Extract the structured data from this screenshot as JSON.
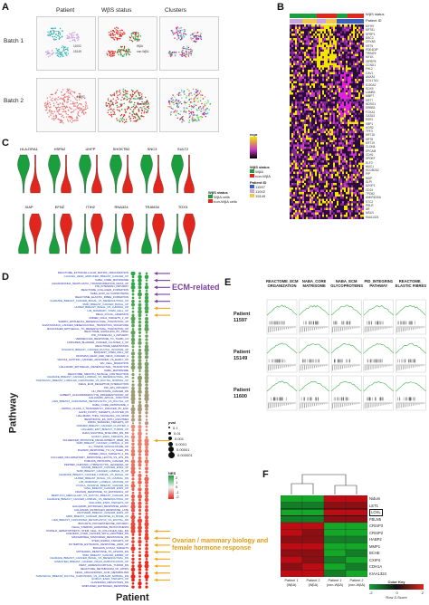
{
  "panel_letters": {
    "a": "A",
    "b": "B",
    "c": "C",
    "d": "D",
    "e": "E",
    "f": "F"
  },
  "panelA": {
    "col_titles": [
      "Patient",
      "WβS status",
      "Clusters"
    ],
    "row_titles": [
      "Batch 1",
      "Batch 2"
    ],
    "batch1_legend": [
      "11002",
      "15149"
    ],
    "batch2_patient": "11597",
    "status_legend": [
      "WβA",
      "non-WβA"
    ]
  },
  "panelB": {
    "header_rows": [
      "WβS status",
      "Patient ID"
    ],
    "legend_title_status": "WβS status",
    "legend_status": [
      "WβA",
      "non-WβA"
    ],
    "legend_title_patient": "Patient ID",
    "legend_patient": [
      "11597",
      "11002",
      "15149"
    ],
    "legend_scale": "expr",
    "genes": [
      "MYH9",
      "KRT81",
      "SFRP1",
      "DSC3",
      "CRYAB",
      "KRT5",
      "PDE4DIP",
      "TRIM29",
      "MYLK",
      "IGFBP5",
      "CCND1",
      "FHL2",
      "CAV1",
      "ANXA1",
      "COL17A1",
      "S100A2",
      "SOX9",
      "LAMB3",
      "MMP7",
      "KRT7",
      "NDRG1",
      "ERBB3",
      "FOXA1",
      "GATA3",
      "ESR1",
      "XBP1",
      "AGR2",
      "TFF3",
      "KRT18",
      "KRT8",
      "KRT19",
      "CLDN4",
      "EPCAM",
      "CDH1",
      "SPDEF",
      "ELF3",
      "MUC1",
      "SCGB2A2",
      "PIP",
      "MGP",
      "SLPI",
      "AZGP1",
      "CD24",
      "TPD52",
      "ANKRD30A",
      "STC2",
      "PRLR",
      "AR",
      "MSLN",
      "KIAA1324"
    ]
  },
  "panelC": {
    "row1_genes": [
      "HLA-DRA1",
      "HSPA2",
      "UHFP",
      "SHOKTB2",
      "SNC3",
      "SULT2"
    ],
    "row2_genes": [
      "XIAP",
      "EFNZ",
      "ITIH2",
      "RNA324",
      "TRAM34",
      "TOX3"
    ],
    "legend_title": "WβS status",
    "legend": [
      "WβA cells",
      "non-WβA cells"
    ]
  },
  "panelD": {
    "axis_y": "Pathway",
    "axis_x": "Patient",
    "group_ecm": "ECM-related",
    "group_ovarian": "Ovarian / mammary biology and female hormone response",
    "size_legend_title": "pval",
    "size_legend": [
      "0.1",
      "0.01",
      "0.001",
      "0.0001",
      "0.00001",
      "0.000001"
    ],
    "color_legend_title": "NES",
    "color_legend": [
      "2",
      "1",
      "0",
      "-1",
      "-2"
    ],
    "pathways": [
      "REACTOME_EXTRACELLULAR_MATRIX_ORGANIZATION",
      "CHUANG_HER2_AMPLIFIED_BREAST_CANCER_UP",
      "NABA_CORE_MATRISOME",
      "CHIARADONNA_NEOPLASTIC_TRANSFORMATION_KRAS_UP",
      "PID_INTEGRIN1_PATHWAY",
      "REACTOME_COLLAGEN_FORMATION",
      "NABA_ECM_GLYCOPROTEINS",
      "REACTOME_ELASTIC_FIBRE_FORMATION",
      "CHARAFE_BREAST_CANCER_BASAL_VS_MESENCHYMAL_UP",
      "SMID_BREAST_CANCER_BASAL_UP",
      "HUPER_BREAST_BASAL_VS_LUMINAL_UP",
      "LIM_MAMMARY_STEM_CELL_UP",
      "KEGG_FOCAL_ADHESION",
      "ONDER_CDH1_TARGETS_2_UP",
      "SARRIO_EPITHELIAL_MESENCHYMAL_TRANSITION_UP",
      "ANASTASSIOU_CANCER_MESENCHYMAL_TRANSITION_SIGNATURE",
      "JECHLINGER_EPITHELIAL_TO_MESENCHYMAL_TRANSITION_UP",
      "REACTOME_SIGNALING_BY_PDGF",
      "PID_SYNDECAN_1_PATHWAY",
      "VERRECCHIA_RESPONSE_TO_TGFB1_C2",
      "LINDGREN_BLADDER_CANCER_CLUSTER_3_UP",
      "REACTOME_HEMOSTASIS",
      "SCHUETZ_BREAST_CANCER_DUCTAL_INVASIVE_UP",
      "BOQUEST_STEM_CELL_UP",
      "RICKMAN_HEAD_AND_NECK_CANCER_A",
      "VECCHI_GASTRIC_CANCER_ADVANCED_VS_EARLY_UP",
      "WU_CELL_MIGRATION",
      "HALLMARK_EPITHELIAL_MESENCHYMAL_TRANSITION",
      "NABA_MATRISOME",
      "REACTOME_SMOOTH_MUSCLE_CONTRACTION",
      "CHARAFE_BREAST_CANCER_LUMINAL_VS_MESENCHYMAL_DN",
      "TURASHVILI_BREAST_LOBULAR_CARCINOMA_VS_DUCTAL_NORMAL_UP",
      "KEGG_ECM_RECEPTOR_INTERACTION",
      "PID_AP1_PATHWAY",
      "LIU_PROSTATE_CANCER_DN",
      "GOBERT_OLIGODENDROCYTE_DIFFERENTIATION_UP",
      "HALLMARK_APICAL_JUNCTION",
      "LIEN_BREAST_CARCINOMA_METAPLASTIC_VS_DUCTAL_UP",
      "NABA_CORE_MATRISOME_2",
      "ZWANG_CLASS_3_TRANSIENTLY_INDUCED_BY_EGF",
      "GAVIN_FOXP3_TARGETS_CLUSTER_P6",
      "HALLMARK_TNFA_SIGNALING_VIA_NFKB",
      "BENPORATH_ES_WITH_H3K27ME3",
      "WANG_SMARCE1_TARGETS_UP",
      "FARMER_BREAST_CANCER_CLUSTER_4",
      "HOLLERN_EMT_BREAST_TUMOR_UP",
      "ZHAN_MULTIPLE_MYELOMA_MS_DN",
      "GOZGIT_ESR1_TARGETS_DN",
      "SCHAEFFER_PROSTATE_DEVELOPMENT_48HR_DN",
      "SMID_BREAST_CANCER_LUMINAL_A_DN",
      "LU_TUMOR_VASCULATURE_UP",
      "DAZARD_RESPONSE_TO_UV_NHEK_DN",
      "ONDER_CDH1_TARGETS_2_DN",
      "FULCHER_INFLAMMATORY_RESPONSE_LECTIN_VS_LPS_DN",
      "TOMLINS_PROSTATE_CANCER_DN",
      "PEPPER_CHRONIC_LYMPHOCYTIC_LEUKEMIA_UP",
      "DOANE_BREAST_CANCER_ESR1_UP",
      "SMID_BREAST_CANCER_LUMINAL_B_UP",
      "CHARAFE_BREAST_CANCER_LUMINAL_VS_BASAL_UP",
      "HUPER_BREAST_BASAL_VS_LUMINAL_DN",
      "LIM_MAMMARY_LUMINAL_MATURE_UP",
      "POOLA_INVASIVE_BREAST_CANCER_DN",
      "YANG_BREAST_CANCER_ESR1_UP",
      "FRASOR_RESPONSE_TO_ESTRADIOL_UP",
      "BERTUCCI_MEDULLARY_VS_DUCTAL_BREAST_CANCER_DN",
      "CHARAFE_BREAST_CANCER_LUMINAL_VS_MESENCHYMAL_UP",
      "WILLIAMS_ESR1_TARGETS_UP",
      "HALLMARK_ESTROGEN_RESPONSE_EARLY",
      "HALLMARK_ESTROGEN_RESPONSE_LATE",
      "VANTVEER_BREAST_CANCER_ESR1_UP",
      "SMID_BREAST_CANCER_RELAPSE_IN_BONE_UP",
      "LIEN_BREAST_CARCINOMA_METAPLASTIC_VS_DUCTAL_DN",
      "BIOCARTA_PROGESTERONE_PATHWAY",
      "KEGG_STEROID_HORMONE_BIOSYNTHESIS",
      "OSWALD_HEMATOPOIETIC_STEM_CELL_IN_COLLAGEN_GEL_DN",
      "ACEVEDO_LIVER_CANCER_WITH_H3K27ME3_DN",
      "MASSARWEH_TAMOXIFEN_RESISTANCE_DN",
      "STEIN_ESRRA_TARGETS_UP",
      "DUTERTRE_ESTRADIOL_RESPONSE_24HR_UP",
      "BOCHKIS_FOXA2_TARGETS",
      "MITSIADES_RESPONSE_TO_APLIDIN_DN",
      "SMID_BREAST_CANCER_ERBB2_UP",
      "CHARAFE_BREAST_CANCER_BASAL_VS_MESENCHYMAL_DN",
      "GINESTIER_BREAST_CANCER_20Q13_AMPLIFICATION_UP",
      "WEST_ADRENOCORTICAL_TUMOR_DN",
      "REACTOME_METABOLISM_OF_LIPIDS",
      "KEGG_ARACHIDONIC_ACID_METABOLISM",
      "TURASHVILI_BREAST_DUCTAL_CARCINOMA_VS_LOBULAR_NORMAL_DN",
      "GOZGIT_ESR1_TARGETS_UP",
      "CHANDRAN_METASTASIS_DN",
      "SIMPLIFIED_ESTROGEN_RESPONSE"
    ]
  },
  "panelE": {
    "columns": [
      "REACTOME_ECM ORGANIZATION",
      "NABA_CORE MATRISOME",
      "NABA_ECM GLYCOPROTEINS",
      "PID_INTEGRIN1 PATHWAY",
      "REACTOME_ ELASTIC FIBRES"
    ],
    "rows": [
      "Patient 11597",
      "Patient 15149",
      "Patient 11600"
    ]
  },
  "panelF": {
    "genes": [
      "Nidum",
      "LET1",
      "LOXL",
      "FBLN5",
      "CRISP3",
      "CRISP2",
      "HABP2",
      "MMP1",
      "BCHE",
      "CXIP4",
      "CDH1A",
      "KIAA1324"
    ],
    "columns": [
      "Patient 1 (WβA)",
      "Patient 2 (WβA)",
      "Patient 1 (non-WβA)",
      "Patient 2 (non-WβA)"
    ],
    "legend_title": "Color Key",
    "legend_axis": "Row Z-Score",
    "legend_ticks": [
      "-2",
      "0",
      "2"
    ]
  },
  "colors": {
    "green": "#1b9e3e",
    "red": "#e0261d",
    "purple": "#7b3fa0",
    "orange": "#f2a51a",
    "heat_low": "#4a1b5e",
    "heat_high": "#f3e600"
  }
}
